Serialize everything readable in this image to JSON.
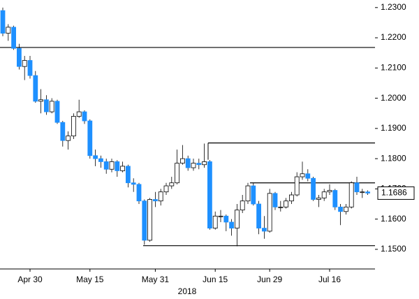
{
  "chart_data": {
    "type": "candlestick",
    "x_label": "2018",
    "categories": [
      null,
      null,
      null,
      null,
      null,
      "Apr 30",
      null,
      null,
      null,
      null,
      null,
      null,
      null,
      null,
      null,
      null,
      "May 15",
      null,
      null,
      null,
      null,
      null,
      null,
      null,
      null,
      null,
      null,
      null,
      "May 31",
      null,
      null,
      null,
      null,
      null,
      null,
      null,
      null,
      null,
      null,
      "Jun 15",
      null,
      null,
      null,
      null,
      null,
      null,
      null,
      null,
      null,
      "Jun 29",
      null,
      null,
      null,
      null,
      null,
      null,
      null,
      null,
      null,
      null,
      "Jul 16",
      null,
      null,
      null,
      null,
      null,
      null,
      null
    ],
    "open": [
      1.229,
      1.2215,
      1.2235,
      1.2165,
      1.2105,
      1.2125,
      1.2075,
      1.199,
      1.1995,
      1.1955,
      1.199,
      1.192,
      1.186,
      1.1875,
      1.194,
      1.1955,
      1.1925,
      1.181,
      1.18,
      1.179,
      1.1765,
      1.179,
      1.176,
      1.1775,
      1.172,
      1.1715,
      1.166,
      1.153,
      1.1665,
      1.166,
      1.169,
      1.171,
      1.172,
      1.1785,
      1.18,
      1.177,
      1.1785,
      1.178,
      1.179,
      1.157,
      1.161,
      1.161,
      1.159,
      1.157,
      1.163,
      1.166,
      1.171,
      1.165,
      1.157,
      1.156,
      1.1685,
      1.164,
      1.164,
      1.166,
      1.168,
      1.174,
      1.175,
      1.1735,
      1.1665,
      1.167,
      1.169,
      1.1695,
      1.164,
      1.1625,
      1.164,
      1.172,
      1.169,
      1.169
    ],
    "high": [
      1.23,
      1.2245,
      1.224,
      1.218,
      1.214,
      1.214,
      1.209,
      1.203,
      1.201,
      1.2,
      1.1995,
      1.1925,
      1.189,
      1.195,
      1.1995,
      1.196,
      1.193,
      1.183,
      1.181,
      1.18,
      1.18,
      1.1795,
      1.179,
      1.178,
      1.1735,
      1.172,
      1.1665,
      1.167,
      1.169,
      1.17,
      1.172,
      1.174,
      1.183,
      1.1845,
      1.181,
      1.18,
      1.18,
      1.185,
      1.1795,
      1.1625,
      1.163,
      1.1615,
      1.16,
      1.165,
      1.168,
      1.172,
      1.172,
      1.166,
      1.161,
      1.17,
      1.169,
      1.166,
      1.167,
      1.169,
      1.1755,
      1.179,
      1.1765,
      1.174,
      1.168,
      1.17,
      1.1715,
      1.17,
      1.165,
      1.165,
      1.1725,
      1.174,
      1.17,
      1.1695
    ],
    "low": [
      1.2205,
      1.219,
      1.216,
      1.2095,
      1.206,
      1.2065,
      1.1985,
      1.195,
      1.1945,
      1.195,
      1.1915,
      1.184,
      1.183,
      1.1865,
      1.1935,
      1.1915,
      1.18,
      1.1775,
      1.177,
      1.175,
      1.1755,
      1.174,
      1.1755,
      1.1705,
      1.169,
      1.165,
      1.1515,
      1.1525,
      1.164,
      1.1645,
      1.168,
      1.17,
      1.1715,
      1.178,
      1.176,
      1.176,
      1.1765,
      1.177,
      1.1565,
      1.1565,
      1.159,
      1.156,
      1.1545,
      1.151,
      1.162,
      1.165,
      1.1645,
      1.155,
      1.1535,
      1.1555,
      1.163,
      1.1625,
      1.1635,
      1.165,
      1.1675,
      1.173,
      1.1725,
      1.166,
      1.164,
      1.166,
      1.168,
      1.163,
      1.158,
      1.1615,
      1.1635,
      1.168,
      1.167,
      1.168
    ],
    "close": [
      1.2215,
      1.2235,
      1.2165,
      1.2105,
      1.2125,
      1.2075,
      1.199,
      1.1995,
      1.1955,
      1.199,
      1.192,
      1.186,
      1.1875,
      1.194,
      1.1955,
      1.1925,
      1.181,
      1.18,
      1.179,
      1.1765,
      1.179,
      1.176,
      1.1775,
      1.172,
      1.1715,
      1.166,
      1.153,
      1.1665,
      1.166,
      1.169,
      1.171,
      1.172,
      1.1785,
      1.18,
      1.177,
      1.1785,
      1.178,
      1.179,
      1.157,
      1.161,
      1.161,
      1.159,
      1.157,
      1.163,
      1.166,
      1.171,
      1.165,
      1.157,
      1.156,
      1.1685,
      1.164,
      1.164,
      1.166,
      1.168,
      1.174,
      1.175,
      1.1735,
      1.1665,
      1.167,
      1.169,
      1.1695,
      1.164,
      1.1625,
      1.164,
      1.172,
      1.169,
      1.169,
      1.1686
    ],
    "up_color": "#ffffff",
    "down_color": "#1e90ff",
    "levels": [
      1.2168,
      1.1852,
      1.172,
      1.1512
    ],
    "last_price": {
      "value": 1.1686,
      "label": "1.1686"
    },
    "ylim": [
      1.1435,
      1.2325
    ],
    "yticks": [
      {
        "value": 1.15,
        "label": "1.1500"
      },
      {
        "value": 1.16,
        "label": "1.1600"
      },
      {
        "value": 1.17,
        "label": "1.1700"
      },
      {
        "value": 1.18,
        "label": "1.1800"
      },
      {
        "value": 1.19,
        "label": "1.1900"
      },
      {
        "value": 1.2,
        "label": "1.2000"
      },
      {
        "value": 1.21,
        "label": "1.2100"
      },
      {
        "value": 1.22,
        "label": "1.2200"
      },
      {
        "value": 1.23,
        "label": "1.2300"
      }
    ]
  }
}
